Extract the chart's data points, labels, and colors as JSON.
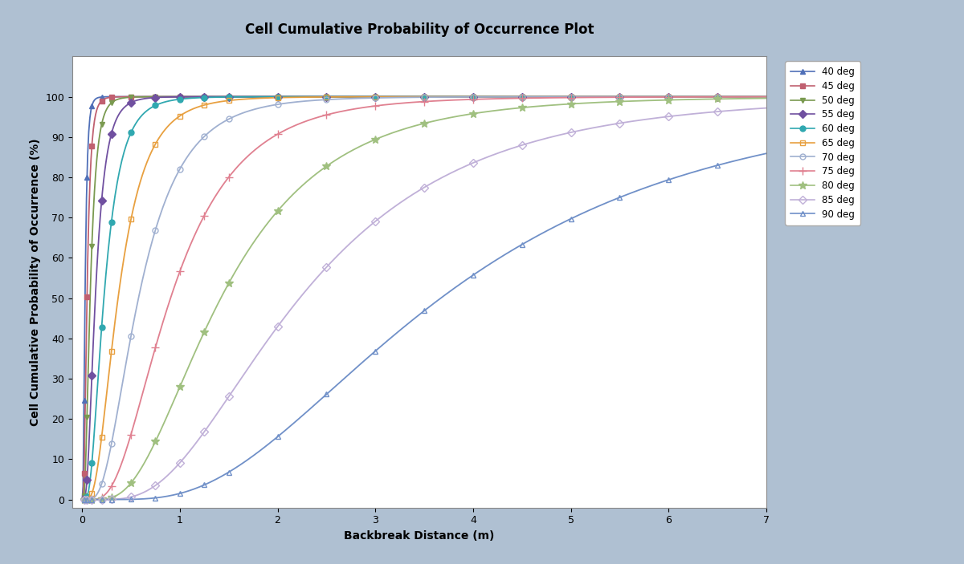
{
  "title": "Cell Cumulative Probability of Occurrence Plot",
  "xlabel": "Backbreak Distance (m)",
  "ylabel": "Cell Cumulative Probability of Occurrence (%)",
  "xlim": [
    -0.1,
    7
  ],
  "ylim": [
    -2,
    110
  ],
  "background_outer": "#afc0d2",
  "background_inner": "#ffffff",
  "series": [
    {
      "label": "40 deg",
      "color": "#5070b8",
      "marker": "^",
      "marker_filled": true,
      "mu": -3.5,
      "sigma": 0.6
    },
    {
      "label": "45 deg",
      "color": "#c06070",
      "marker": "s",
      "marker_filled": true,
      "mu": -3.0,
      "sigma": 0.6
    },
    {
      "label": "50 deg",
      "color": "#7a9a50",
      "marker": "v",
      "marker_filled": true,
      "mu": -2.5,
      "sigma": 0.6
    },
    {
      "label": "55 deg",
      "color": "#7050a0",
      "marker": "D",
      "marker_filled": true,
      "mu": -2.0,
      "sigma": 0.6
    },
    {
      "label": "60 deg",
      "color": "#30a8b0",
      "marker": "o",
      "marker_filled": true,
      "mu": -1.5,
      "sigma": 0.6
    },
    {
      "label": "65 deg",
      "color": "#e8a040",
      "marker": "s",
      "marker_filled": false,
      "mu": -1.0,
      "sigma": 0.6
    },
    {
      "label": "70 deg",
      "color": "#a0b0d0",
      "marker": "o",
      "marker_filled": false,
      "mu": -0.55,
      "sigma": 0.6
    },
    {
      "label": "75 deg",
      "color": "#e08090",
      "marker": "+",
      "marker_filled": false,
      "mu": -0.1,
      "sigma": 0.6
    },
    {
      "label": "80 deg",
      "color": "#a0c080",
      "marker": "*",
      "marker_filled": false,
      "mu": 0.35,
      "sigma": 0.6
    },
    {
      "label": "85 deg",
      "color": "#c0b0d8",
      "marker": "D",
      "marker_filled": false,
      "mu": 0.8,
      "sigma": 0.6
    },
    {
      "label": "90 deg",
      "color": "#7090c8",
      "marker": "^",
      "marker_filled": false,
      "mu": 1.3,
      "sigma": 0.6
    }
  ],
  "xticks": [
    0,
    1,
    2,
    3,
    4,
    5,
    6,
    7
  ],
  "yticks": [
    0,
    10,
    20,
    30,
    40,
    50,
    60,
    70,
    80,
    90,
    100
  ],
  "title_fontsize": 12,
  "label_fontsize": 10,
  "tick_fontsize": 9,
  "legend_fontsize": 8.5
}
